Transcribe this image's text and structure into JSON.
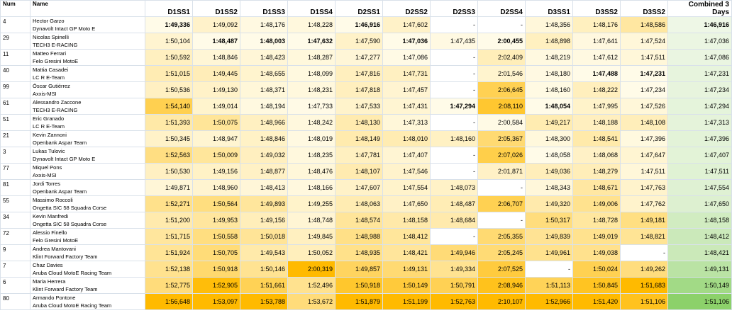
{
  "headers": {
    "num": "Num",
    "name": "Name",
    "sessions": [
      "D1SS1",
      "D1SS2",
      "D1SS3",
      "D1SS4",
      "D2SS1",
      "D2SS2",
      "D2SS3",
      "D2SS4",
      "D3SS1",
      "D3SS2",
      "D3SS2"
    ],
    "combined": "Combined 3 Days"
  },
  "colors": {
    "scale_light": "#fffbe8",
    "scale_dark": "#ffba00",
    "combined_light": "#eef7e6",
    "combined_dark": "#8cd16a",
    "grid": "#d9e1ea"
  },
  "rows": [
    {
      "num": "4",
      "rider": "Hector Garzo",
      "team": "Dynavolt Intact GP Moto E",
      "times": [
        "1:49,336",
        "1:49,092",
        "1:48,176",
        "1:48,228",
        "1:46,916",
        "1:47,602",
        "-",
        "-",
        "1:48,356",
        "1:48,176",
        "1:48,586"
      ],
      "combined": "1:46,916"
    },
    {
      "num": "29",
      "rider": "Nicolas Spinelli",
      "team": "TECH3 E-RACING",
      "times": [
        "1:50,104",
        "1:48,487",
        "1:48,003",
        "1:47,632",
        "1:47,590",
        "1:47,036",
        "1:47,435",
        "2:00,455",
        "1:48,898",
        "1:47,641",
        "1:47,524"
      ],
      "combined": "1:47,036"
    },
    {
      "num": "11",
      "rider": "Matteo Ferrari",
      "team": "Felo Gresini MotoE",
      "times": [
        "1:50,592",
        "1:48,846",
        "1:48,423",
        "1:48,287",
        "1:47,277",
        "1:47,086",
        "-",
        "2:02,409",
        "1:48,219",
        "1:47,612",
        "1:47,511"
      ],
      "combined": "1:47,086"
    },
    {
      "num": "40",
      "rider": "Mattia Casadei",
      "team": "LC R E-Team",
      "times": [
        "1:51,015",
        "1:49,445",
        "1:48,655",
        "1:48,099",
        "1:47,816",
        "1:47,731",
        "-",
        "2:01,546",
        "1:48,180",
        "1:47,488",
        "1:47,231"
      ],
      "combined": "1:47,231"
    },
    {
      "num": "99",
      "rider": "Óscar Gutiérrez",
      "team": "Axxis-MSI",
      "times": [
        "1:50,536",
        "1:49,130",
        "1:48,371",
        "1:48,231",
        "1:47,818",
        "1:47,457",
        "-",
        "2:06,645",
        "1:48,160",
        "1:48,222",
        "1:47,234"
      ],
      "combined": "1:47,234"
    },
    {
      "num": "61",
      "rider": "Alessandro Zaccone",
      "team": "TECH3 E-RACING",
      "times": [
        "1:54,140",
        "1:49,014",
        "1:48,194",
        "1:47,733",
        "1:47,533",
        "1:47,431",
        "1:47,294",
        "2:08,110",
        "1:48,054",
        "1:47,995",
        "1:47,526"
      ],
      "combined": "1:47,294"
    },
    {
      "num": "51",
      "rider": "Eric Granado",
      "team": "LC R E-Team",
      "times": [
        "1:51,393",
        "1:50,075",
        "1:48,966",
        "1:48,242",
        "1:48,130",
        "1:47,313",
        "-",
        "2:00,584",
        "1:49,217",
        "1:48,188",
        "1:48,108"
      ],
      "combined": "1:47,313"
    },
    {
      "num": "21",
      "rider": "Kevin Zannoni",
      "team": "Openbank Aspar Team",
      "times": [
        "1:50,345",
        "1:48,947",
        "1:48,846",
        "1:48,019",
        "1:48,149",
        "1:48,010",
        "1:48,160",
        "2:05,367",
        "1:48,300",
        "1:48,541",
        "1:47,396"
      ],
      "combined": "1:47,396"
    },
    {
      "num": "3",
      "rider": "Lukas Tulovic",
      "team": "Dynavolt Intact GP Moto E",
      "times": [
        "1:52,563",
        "1:50,009",
        "1:49,032",
        "1:48,235",
        "1:47,781",
        "1:47,407",
        "-",
        "2:07,026",
        "1:48,058",
        "1:48,068",
        "1:47,647"
      ],
      "combined": "1:47,407"
    },
    {
      "num": "77",
      "rider": "Miquel Pons",
      "team": "Axxis-MSI",
      "times": [
        "1:50,530",
        "1:49,156",
        "1:48,877",
        "1:48,476",
        "1:48,107",
        "1:47,546",
        "-",
        "2:01,871",
        "1:49,036",
        "1:48,279",
        "1:47,511"
      ],
      "combined": "1:47,511"
    },
    {
      "num": "81",
      "rider": "Jordi Torres",
      "team": "Openbank Aspar Team",
      "times": [
        "1:49,871",
        "1:48,960",
        "1:48,413",
        "1:48,166",
        "1:47,607",
        "1:47,554",
        "1:48,073",
        "-",
        "1:48,343",
        "1:48,671",
        "1:47,763"
      ],
      "combined": "1:47,554"
    },
    {
      "num": "55",
      "rider": "Massimo Roccoli",
      "team": "Ongetta SIC 58 Squadra Corse",
      "times": [
        "1:52,271",
        "1:50,564",
        "1:49,893",
        "1:49,255",
        "1:48,063",
        "1:47,650",
        "1:48,487",
        "2:06,707",
        "1:49,320",
        "1:49,006",
        "1:47,762"
      ],
      "combined": "1:47,650"
    },
    {
      "num": "34",
      "rider": "Kevin Manfredi",
      "team": "Ongetta SIC 58 Squadra Corse",
      "times": [
        "1:51,200",
        "1:49,953",
        "1:49,156",
        "1:48,748",
        "1:48,574",
        "1:48,158",
        "1:48,684",
        "-",
        "1:50,317",
        "1:48,728",
        "1:49,181"
      ],
      "combined": "1:48,158"
    },
    {
      "num": "72",
      "rider": "Alessio Finello",
      "team": "Felo Gresini MotoE",
      "times": [
        "1:51,715",
        "1:50,558",
        "1:50,018",
        "1:49,845",
        "1:48,988",
        "1:48,412",
        "-",
        "2:05,355",
        "1:49,839",
        "1:49,019",
        "1:48,821"
      ],
      "combined": "1:48,412"
    },
    {
      "num": "9",
      "rider": "Andrea Mantovani",
      "team": "Klint Forward Factory Team",
      "times": [
        "1:51,924",
        "1:50,705",
        "1:49,543",
        "1:50,052",
        "1:48,935",
        "1:48,421",
        "1:49,946",
        "2:05,245",
        "1:49,961",
        "1:49,038",
        "-"
      ],
      "combined": "1:48,421"
    },
    {
      "num": "7",
      "rider": "Chaz Davies",
      "team": "Aruba Cloud MotoE Racing Team",
      "times": [
        "1:52,138",
        "1:50,918",
        "1:50,146",
        "2:00,319",
        "1:49,857",
        "1:49,131",
        "1:49,334",
        "2:07,525",
        "-",
        "1:50,024",
        "1:49,262"
      ],
      "combined": "1:49,131"
    },
    {
      "num": "6",
      "rider": "Maria Herrera",
      "team": "Klint Forward Factory Team",
      "times": [
        "1:52,775",
        "1:52,905",
        "1:51,661",
        "1:52,496",
        "1:50,918",
        "1:50,149",
        "1:50,791",
        "2:08,946",
        "1:51,113",
        "1:50,845",
        "1:51,683"
      ],
      "combined": "1:50,149"
    },
    {
      "num": "80",
      "rider": "Armando Pontone",
      "team": "Aruba Cloud MotoE Racing Team",
      "times": [
        "1:56,648",
        "1:53,097",
        "1:53,788",
        "1:53,672",
        "1:51,879",
        "1:51,199",
        "1:52,763",
        "2:10,107",
        "1:52,966",
        "1:51,420",
        "1:51,106"
      ],
      "combined": "1:51,106"
    }
  ]
}
